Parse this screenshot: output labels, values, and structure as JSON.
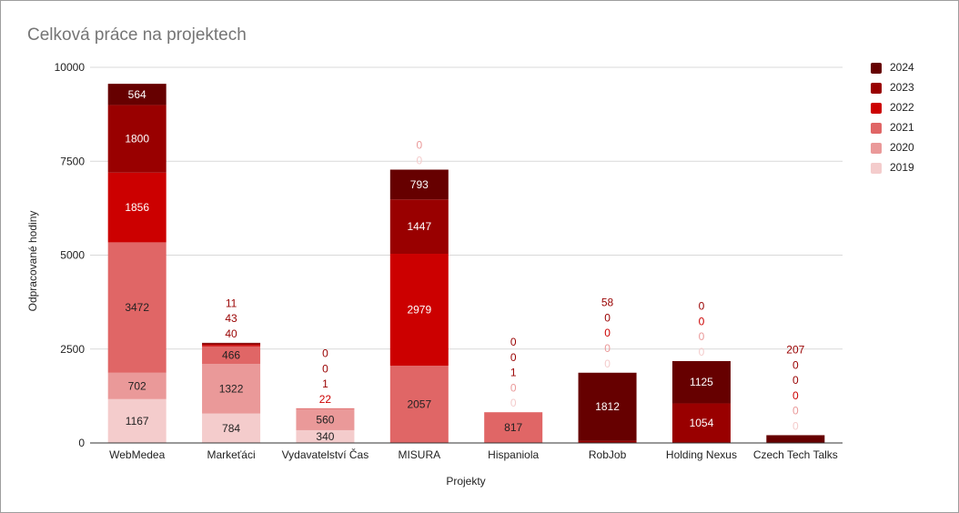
{
  "chart_data": {
    "type": "bar",
    "stacked": true,
    "title": "Celková práce na projektech",
    "xlabel": "Projekty",
    "ylabel": "Odpracované hodiny",
    "ylim": [
      0,
      10000
    ],
    "yticks": [
      "0",
      "2500",
      "5000",
      "7500",
      "10000"
    ],
    "grid": true,
    "legend_position": "right",
    "categories": [
      "WebMedea",
      "Markeťáci",
      "Vydavatelství Čas",
      "MISURA",
      "Hispaniola",
      "RobJob",
      "Holding Nexus",
      "Czech Tech Talks"
    ],
    "series": [
      {
        "name": "2019",
        "color": "#f4cccc",
        "values": [
          1167,
          784,
          340,
          0,
          0,
          0,
          0,
          0
        ],
        "labels": [
          "1167",
          "784",
          "340",
          "0",
          "0",
          "0",
          "0",
          "0"
        ]
      },
      {
        "name": "2020",
        "color": "#ea9999",
        "values": [
          702,
          1322,
          560,
          0,
          0,
          0,
          0,
          0
        ],
        "labels": [
          "702",
          "1322",
          "560",
          "0",
          "0",
          "0",
          "0",
          "0"
        ]
      },
      {
        "name": "2021",
        "color": "#e06666",
        "values": [
          3472,
          466,
          22,
          2057,
          817,
          0,
          0,
          0
        ],
        "labels": [
          "3472",
          "466",
          "22",
          "2057",
          "817",
          "0",
          "0",
          "0"
        ]
      },
      {
        "name": "2022",
        "color": "#cc0000",
        "values": [
          1856,
          40,
          1,
          2979,
          1,
          0,
          0,
          0
        ],
        "labels": [
          "1856",
          "40",
          "1",
          "2979",
          "1",
          "0",
          "0",
          "0"
        ]
      },
      {
        "name": "2023",
        "color": "#990000",
        "values": [
          1800,
          43,
          0,
          1447,
          0,
          58,
          1054,
          0
        ],
        "labels": [
          "1800",
          "43",
          "0",
          "1447",
          "0",
          "58",
          "1054",
          "0"
        ]
      },
      {
        "name": "2024",
        "color": "#660000",
        "values": [
          564,
          11,
          0,
          793,
          0,
          1812,
          1125,
          207
        ],
        "labels": [
          "564",
          "11",
          "0",
          "793",
          "0",
          "1812",
          "1125",
          "207"
        ]
      }
    ]
  }
}
